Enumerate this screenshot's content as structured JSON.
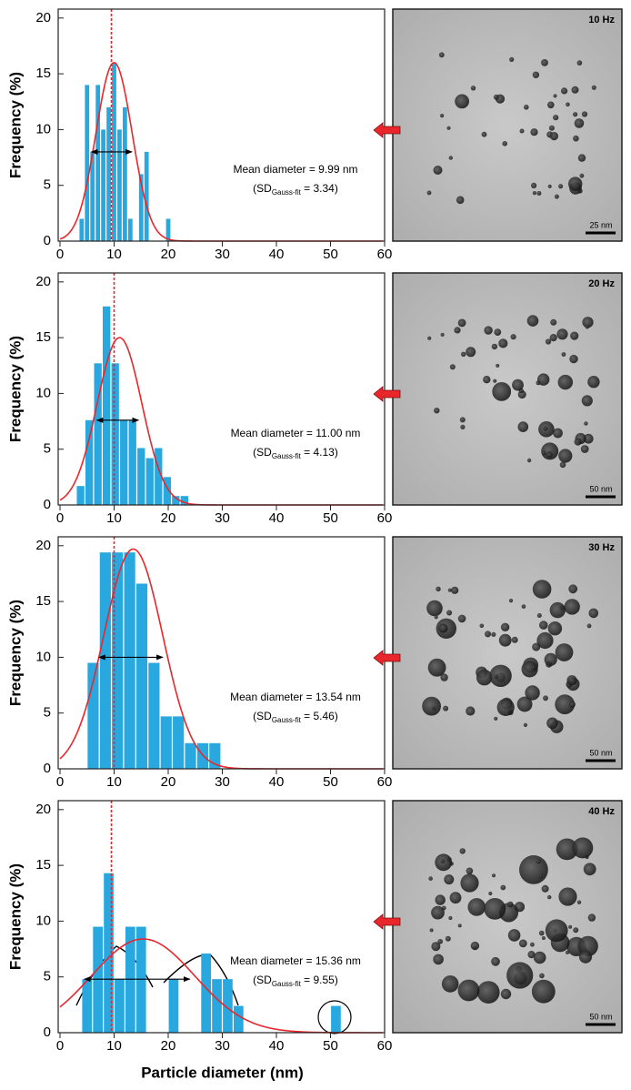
{
  "chart_data": [
    {
      "type": "histogram",
      "bins": [
        3.5,
        4.5,
        5.5,
        6.5,
        7.5,
        8.5,
        9.5,
        10.5,
        11.5,
        12.5,
        13.5,
        14.5,
        15.5,
        16.5,
        17.5,
        18.5,
        19.5,
        20.5
      ],
      "values": [
        2,
        14,
        8,
        14,
        10,
        12,
        16,
        10,
        12,
        2,
        0,
        6,
        8,
        0,
        0,
        0,
        2
      ],
      "color": "#29a8e0",
      "fit": {
        "mean": 9.99,
        "sd": 3.34,
        "peak": 16,
        "color": "#e8262b"
      },
      "reference_line": 9.5,
      "arrow": {
        "x": [
          5.8,
          13.3
        ],
        "y": 8
      },
      "annotation": [
        "Mean diameter = 9.99 nm",
        "(SD",
        "Gauss-fit",
        " = 3.34)"
      ],
      "ylabel": "Frequency (%)",
      "xlim": [
        0,
        60
      ],
      "ylim": [
        0,
        20.8
      ],
      "xticks": [
        0,
        10,
        20,
        30,
        40,
        50,
        60
      ],
      "yticks": [
        0,
        5,
        10,
        15,
        20
      ],
      "image_label": "10 Hz",
      "scale_bar": "25 nm"
    },
    {
      "type": "histogram",
      "bins": [
        3,
        4.6,
        6.2,
        7.8,
        9.4,
        11,
        12.6,
        14.2,
        15.8,
        17.4,
        19,
        20.6,
        22.2,
        23.8
      ],
      "values": [
        1.7,
        7.6,
        12.7,
        17.8,
        12.7,
        7.6,
        7.6,
        5.1,
        4.2,
        5.1,
        2.5,
        0.8,
        0.8
      ],
      "color": "#29a8e0",
      "fit": {
        "mean": 11.0,
        "sd": 4.13,
        "peak": 15,
        "color": "#e8262b"
      },
      "reference_line": 10,
      "arrow": {
        "x": [
          6.8,
          14.5
        ],
        "y": 7.6
      },
      "annotation": [
        "Mean diameter = 11.00 nm",
        "(SD",
        "Gauss-fit",
        " = 4.13)"
      ],
      "ylabel": "Frequency (%)",
      "xlim": [
        0,
        60
      ],
      "ylim": [
        0,
        20.8
      ],
      "xticks": [
        0,
        10,
        20,
        30,
        40,
        50,
        60
      ],
      "yticks": [
        0,
        5,
        10,
        15,
        20
      ],
      "image_label": "20 Hz",
      "scale_bar": "50 nm"
    },
    {
      "type": "histogram",
      "bins": [
        5,
        7.25,
        9.5,
        11.75,
        14,
        16.25,
        18.5,
        20.75,
        23,
        25.25,
        27.5,
        29.75
      ],
      "values": [
        9.5,
        19.4,
        19.4,
        19.4,
        16.6,
        9.5,
        4.7,
        4.7,
        2.3,
        2.3,
        2.3
      ],
      "color": "#29a8e0",
      "fit": {
        "mean": 13.54,
        "sd": 5.46,
        "peak": 19.7,
        "color": "#e8262b"
      },
      "reference_line": 10,
      "arrow": {
        "x": [
          7.2,
          19
        ],
        "y": 10
      },
      "annotation": [
        "Mean diameter = 13.54 nm",
        "(SD",
        "Gauss-fit",
        " = 5.46)"
      ],
      "ylabel": "Frequency (%)",
      "xlim": [
        0,
        60
      ],
      "ylim": [
        0,
        20.8
      ],
      "xticks": [
        0,
        10,
        20,
        30,
        40,
        50,
        60
      ],
      "yticks": [
        0,
        5,
        10,
        15,
        20
      ],
      "image_label": "30 Hz",
      "scale_bar": "50 nm"
    },
    {
      "type": "histogram",
      "bins": [
        4,
        6,
        8,
        10,
        12,
        14,
        16,
        18,
        20,
        22,
        24,
        26,
        28,
        30,
        32,
        34,
        36,
        38,
        40,
        42,
        44,
        46,
        48,
        50,
        52
      ],
      "values": [
        4.8,
        9.5,
        14.3,
        4.8,
        9.5,
        9.5,
        0,
        0,
        4.8,
        0,
        0,
        7.1,
        4.8,
        4.8,
        2.4,
        0,
        0,
        0,
        0,
        0,
        0,
        0,
        0,
        2.4
      ],
      "color": "#29a8e0",
      "fit": {
        "mean": 15.36,
        "sd": 9.55,
        "peak": 8.4,
        "color": "#e8262b"
      },
      "reference_line": 9.5,
      "arrow": {
        "x": [
          4.5,
          24
        ],
        "y": 4.8
      },
      "annotation": [
        "Mean diameter = 15.36 nm",
        "(SD",
        "Gauss-fit",
        " = 9.55)"
      ],
      "ylabel": "Frequency (%)",
      "xlabel": "Particle diameter (nm)",
      "xlim": [
        0,
        60
      ],
      "ylim": [
        0,
        20.8
      ],
      "xticks": [
        0,
        10,
        20,
        30,
        40,
        50,
        60
      ],
      "yticks": [
        0,
        5,
        10,
        15,
        20
      ],
      "image_label": "40 Hz",
      "scale_bar": "50 nm"
    }
  ]
}
